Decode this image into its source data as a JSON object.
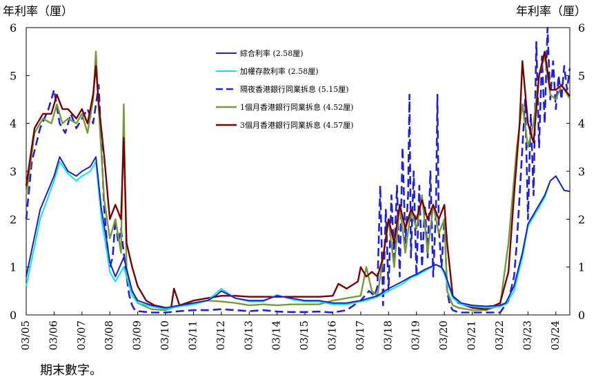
{
  "chart_data": {
    "type": "line",
    "ylabel_left": "年利率（厘）",
    "ylabel_right": "年利率（厘）",
    "ylim": [
      0,
      6
    ],
    "yticks": [
      "0",
      "1",
      "2",
      "3",
      "4",
      "5",
      "6"
    ],
    "xlim": [
      2005.0,
      2024.5
    ],
    "xticks": [
      "03/05",
      "03/06",
      "03/07",
      "03/08",
      "03/09",
      "03/10",
      "03/11",
      "03/12",
      "03/13",
      "03/14",
      "03/15",
      "03/16",
      "03/17",
      "03/18",
      "03/19",
      "03/20",
      "03/21",
      "03/22",
      "03/23",
      "03/24"
    ],
    "footnote": "期末數字。",
    "series": [
      {
        "name": "綜合利率 (2.58厘)",
        "color": "#1f1fbf",
        "style": "solid",
        "width": 2,
        "x": [
          2005.0,
          2005.5,
          2006.0,
          2006.2,
          2006.5,
          2006.8,
          2007.0,
          2007.3,
          2007.5,
          2007.7,
          2007.9,
          2008.0,
          2008.2,
          2008.5,
          2008.8,
          2009.0,
          2009.5,
          2010.0,
          2010.5,
          2011.0,
          2011.5,
          2011.8,
          2012.0,
          2012.5,
          2013.0,
          2013.5,
          2014.0,
          2014.5,
          2015.0,
          2015.5,
          2016.0,
          2016.5,
          2017.0,
          2017.3,
          2017.6,
          2018.0,
          2018.5,
          2018.8,
          2019.0,
          2019.3,
          2019.7,
          2019.9,
          2020.0,
          2020.3,
          2020.6,
          2021.0,
          2021.5,
          2022.0,
          2022.2,
          2022.5,
          2022.8,
          2023.0,
          2023.3,
          2023.6,
          2023.8,
          2024.0,
          2024.3,
          2024.5
        ],
        "values": [
          0.8,
          2.2,
          2.9,
          3.3,
          3.0,
          2.9,
          3.0,
          3.1,
          3.3,
          2.2,
          1.5,
          1.1,
          0.8,
          1.2,
          0.5,
          0.3,
          0.2,
          0.15,
          0.2,
          0.25,
          0.3,
          0.4,
          0.5,
          0.35,
          0.3,
          0.3,
          0.4,
          0.35,
          0.3,
          0.3,
          0.25,
          0.25,
          0.3,
          0.35,
          0.4,
          0.55,
          0.7,
          0.8,
          0.85,
          0.95,
          1.05,
          1.0,
          0.9,
          0.4,
          0.25,
          0.2,
          0.18,
          0.2,
          0.25,
          0.6,
          1.3,
          1.9,
          2.2,
          2.5,
          2.8,
          2.9,
          2.6,
          2.58
        ]
      },
      {
        "name": "加權存款利率 (2.58厘)",
        "color": "#00e5ff",
        "style": "solid",
        "width": 2,
        "x": [
          2005.0,
          2005.5,
          2006.0,
          2006.2,
          2006.5,
          2006.8,
          2007.0,
          2007.3,
          2007.5,
          2007.7,
          2007.9,
          2008.0,
          2008.2,
          2008.5,
          2008.8,
          2009.0,
          2009.5,
          2010.0,
          2010.5,
          2011.0,
          2011.5,
          2011.8,
          2012.0,
          2012.5,
          2013.0,
          2013.5,
          2014.0,
          2014.5,
          2015.0,
          2015.5,
          2016.0,
          2016.5,
          2017.0,
          2017.3,
          2017.6,
          2018.0,
          2018.5,
          2018.8,
          2019.0,
          2019.3,
          2019.7,
          2019.9,
          2020.0,
          2020.3,
          2020.6,
          2021.0,
          2021.5,
          2022.0,
          2022.2,
          2022.5,
          2022.8,
          2023.0,
          2023.3,
          2023.6,
          2023.8,
          2024.0,
          2024.3,
          2024.5
        ],
        "values": [
          0.6,
          2.0,
          2.8,
          3.2,
          2.95,
          2.8,
          2.9,
          3.0,
          3.2,
          2.0,
          1.3,
          0.9,
          0.7,
          1.0,
          0.4,
          0.25,
          0.18,
          0.12,
          0.18,
          0.22,
          0.3,
          0.45,
          0.55,
          0.35,
          0.28,
          0.28,
          0.42,
          0.33,
          0.28,
          0.28,
          0.22,
          0.22,
          0.28,
          0.32,
          0.38,
          0.5,
          0.65,
          0.78,
          0.82,
          0.92,
          1.05,
          0.98,
          0.85,
          0.35,
          0.22,
          0.18,
          0.15,
          0.18,
          0.22,
          0.5,
          1.2,
          1.85,
          2.15,
          2.45,
          2.8,
          2.9,
          2.6,
          2.58
        ]
      },
      {
        "name": "隔夜香港銀行同業拆息 (5.15厘)",
        "color": "#1f1fdf",
        "style": "dashed",
        "width": 2.6,
        "x": [
          2005.0,
          2005.2,
          2005.5,
          2005.8,
          2006.0,
          2006.2,
          2006.4,
          2006.6,
          2006.8,
          2007.0,
          2007.2,
          2007.4,
          2007.6,
          2007.7,
          2007.8,
          2007.9,
          2008.0,
          2008.1,
          2008.2,
          2008.3,
          2008.4,
          2008.5,
          2008.6,
          2008.7,
          2008.8,
          2008.9,
          2009.0,
          2009.5,
          2010.0,
          2010.5,
          2011.0,
          2011.5,
          2012.0,
          2012.5,
          2013.0,
          2013.5,
          2014.0,
          2014.5,
          2015.0,
          2015.5,
          2016.0,
          2016.5,
          2017.0,
          2017.3,
          2017.5,
          2017.6,
          2017.7,
          2017.8,
          2017.9,
          2018.0,
          2018.1,
          2018.2,
          2018.3,
          2018.4,
          2018.5,
          2018.6,
          2018.7,
          2018.75,
          2018.8,
          2018.9,
          2019.0,
          2019.1,
          2019.2,
          2019.3,
          2019.4,
          2019.5,
          2019.6,
          2019.7,
          2019.75,
          2019.8,
          2019.9,
          2020.0,
          2020.1,
          2020.2,
          2020.3,
          2020.4,
          2020.5,
          2021.0,
          2021.5,
          2022.0,
          2022.3,
          2022.5,
          2022.6,
          2022.7,
          2022.8,
          2022.9,
          2023.0,
          2023.1,
          2023.2,
          2023.3,
          2023.4,
          2023.5,
          2023.6,
          2023.7,
          2023.8,
          2023.9,
          2024.0,
          2024.1,
          2024.2,
          2024.3,
          2024.4,
          2024.5
        ],
        "values": [
          2.0,
          3.2,
          3.9,
          4.3,
          4.7,
          4.0,
          3.8,
          4.2,
          3.9,
          4.1,
          4.3,
          4.0,
          4.8,
          3.5,
          2.2,
          1.5,
          1.0,
          1.2,
          2.0,
          1.5,
          1.8,
          1.3,
          0.8,
          0.4,
          0.2,
          0.1,
          0.08,
          0.05,
          0.05,
          0.08,
          0.1,
          0.1,
          0.12,
          0.1,
          0.08,
          0.1,
          0.07,
          0.06,
          0.06,
          0.07,
          0.05,
          0.1,
          0.3,
          0.5,
          0.4,
          0.6,
          2.7,
          0.2,
          2.2,
          0.5,
          2.5,
          1.2,
          2.7,
          0.8,
          3.5,
          1.5,
          2.5,
          4.6,
          1.2,
          3.0,
          0.8,
          2.7,
          1.0,
          2.3,
          1.2,
          3.0,
          0.8,
          2.2,
          4.6,
          1.8,
          1.0,
          2.0,
          0.5,
          0.2,
          0.1,
          0.08,
          0.05,
          0.05,
          0.05,
          0.05,
          0.3,
          0.8,
          1.5,
          2.5,
          3.5,
          4.5,
          2.0,
          4.2,
          2.5,
          5.7,
          3.5,
          5.4,
          4.0,
          6.0,
          4.5,
          5.3,
          4.3,
          5.0,
          4.5,
          5.2,
          4.7,
          5.15
        ]
      },
      {
        "name": "1個月香港銀行同業拆息 (4.52厘)",
        "color": "#739b3a",
        "style": "solid",
        "width": 2.4,
        "x": [
          2005.0,
          2005.3,
          2005.6,
          2005.9,
          2006.1,
          2006.3,
          2006.5,
          2006.8,
          2007.0,
          2007.2,
          2007.4,
          2007.5,
          2007.6,
          2007.8,
          2008.0,
          2008.2,
          2008.4,
          2008.5,
          2008.6,
          2008.8,
          2009.0,
          2009.5,
          2010.0,
          2010.5,
          2011.0,
          2011.5,
          2012.0,
          2012.5,
          2013.0,
          2013.5,
          2014.0,
          2014.5,
          2015.0,
          2015.5,
          2016.0,
          2016.5,
          2017.0,
          2017.2,
          2017.4,
          2017.6,
          2017.8,
          2018.0,
          2018.2,
          2018.4,
          2018.6,
          2018.8,
          2019.0,
          2019.2,
          2019.4,
          2019.6,
          2019.8,
          2020.0,
          2020.1,
          2020.3,
          2020.5,
          2021.0,
          2021.5,
          2022.0,
          2022.3,
          2022.6,
          2022.8,
          2023.0,
          2023.2,
          2023.4,
          2023.6,
          2023.8,
          2024.0,
          2024.2,
          2024.5
        ],
        "values": [
          2.5,
          3.8,
          4.1,
          4.0,
          4.4,
          4.0,
          4.1,
          4.0,
          4.2,
          3.8,
          4.5,
          5.5,
          4.3,
          2.4,
          1.6,
          2.0,
          1.3,
          4.4,
          0.9,
          0.5,
          0.25,
          0.12,
          0.1,
          0.2,
          0.25,
          0.3,
          0.28,
          0.25,
          0.2,
          0.22,
          0.2,
          0.22,
          0.22,
          0.22,
          0.3,
          0.35,
          0.4,
          1.0,
          0.5,
          0.4,
          1.2,
          2.0,
          1.0,
          2.3,
          1.3,
          2.2,
          1.8,
          2.5,
          1.3,
          2.3,
          1.7,
          2.0,
          0.5,
          0.2,
          0.15,
          0.1,
          0.1,
          0.2,
          1.5,
          3.5,
          4.4,
          3.5,
          4.0,
          5.0,
          5.4,
          4.6,
          4.5,
          4.8,
          4.52
        ]
      },
      {
        "name": "3個月香港銀行同業拆息 (4.57厘)",
        "color": "#7a0000",
        "style": "solid",
        "width": 2.4,
        "x": [
          2005.0,
          2005.3,
          2005.6,
          2005.9,
          2006.1,
          2006.3,
          2006.5,
          2006.8,
          2007.0,
          2007.2,
          2007.4,
          2007.5,
          2007.6,
          2007.8,
          2008.0,
          2008.2,
          2008.4,
          2008.5,
          2008.6,
          2008.8,
          2009.0,
          2009.3,
          2009.6,
          2010.0,
          2010.2,
          2010.3,
          2010.5,
          2011.0,
          2011.5,
          2012.0,
          2012.5,
          2013.0,
          2013.5,
          2014.0,
          2014.5,
          2015.0,
          2015.5,
          2016.0,
          2016.2,
          2016.5,
          2016.9,
          2017.0,
          2017.2,
          2017.4,
          2017.6,
          2017.8,
          2018.0,
          2018.2,
          2018.4,
          2018.6,
          2018.8,
          2019.0,
          2019.2,
          2019.4,
          2019.6,
          2019.8,
          2020.0,
          2020.1,
          2020.3,
          2020.5,
          2021.0,
          2021.5,
          2022.0,
          2022.3,
          2022.5,
          2022.7,
          2022.8,
          2023.0,
          2023.2,
          2023.4,
          2023.6,
          2023.8,
          2024.0,
          2024.2,
          2024.5
        ],
        "values": [
          2.7,
          3.9,
          4.2,
          4.2,
          4.6,
          4.3,
          4.3,
          4.1,
          4.3,
          4.0,
          4.6,
          5.2,
          4.4,
          3.3,
          2.0,
          2.3,
          2.0,
          3.7,
          1.5,
          1.0,
          0.6,
          0.3,
          0.2,
          0.15,
          0.15,
          0.55,
          0.2,
          0.3,
          0.35,
          0.4,
          0.4,
          0.38,
          0.38,
          0.38,
          0.38,
          0.38,
          0.38,
          0.4,
          0.65,
          0.55,
          0.7,
          1.0,
          0.8,
          0.9,
          0.8,
          1.2,
          2.0,
          1.5,
          2.3,
          1.8,
          2.2,
          2.0,
          2.4,
          2.0,
          2.3,
          2.0,
          2.3,
          1.5,
          0.4,
          0.25,
          0.15,
          0.12,
          0.25,
          0.9,
          2.5,
          4.0,
          5.3,
          4.0,
          3.6,
          5.0,
          5.5,
          4.7,
          4.7,
          4.8,
          4.57
        ]
      }
    ]
  }
}
